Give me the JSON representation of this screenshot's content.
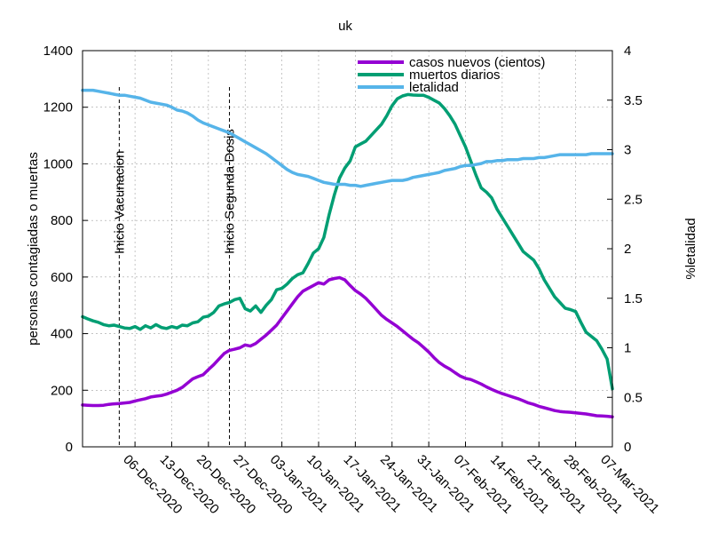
{
  "chart_data": {
    "type": "line",
    "title": "uk",
    "ylabel": "personas contagiadas o muertas",
    "y2label": "%letalidad",
    "ylim": [
      0,
      1400
    ],
    "y2lim": [
      0,
      4
    ],
    "yticks": [
      0,
      200,
      400,
      600,
      800,
      1000,
      1200,
      1400
    ],
    "y2ticks": [
      "0",
      "0.5",
      "1",
      "1.5",
      "2",
      "2.5",
      "3",
      "3.5",
      "4"
    ],
    "x_start": "2020-11-26",
    "x_end": "2021-03-07",
    "xticks": [
      "06-Dec-2020",
      "13-Dec-2020",
      "20-Dec-2020",
      "27-Dec-2020",
      "03-Jan-2021",
      "10-Jan-2021",
      "17-Jan-2021",
      "24-Jan-2021",
      "31-Jan-2021",
      "07-Feb-2021",
      "14-Feb-2021",
      "21-Feb-2021",
      "28-Feb-2021",
      "07-Mar-2021"
    ],
    "xtick_dates": [
      "2020-12-06",
      "2020-12-13",
      "2020-12-20",
      "2020-12-27",
      "2021-01-03",
      "2021-01-10",
      "2021-01-17",
      "2021-01-24",
      "2021-01-31",
      "2021-02-07",
      "2021-02-14",
      "2021-02-21",
      "2021-02-28",
      "2021-03-07"
    ],
    "grid": true,
    "legend_position": "top-right",
    "annotations": [
      {
        "label": "Inicio Vacunacion",
        "date": "2020-12-03"
      },
      {
        "label": "Inicio Segunda Dosis",
        "date": "2020-12-24"
      }
    ],
    "x": [
      "2020-11-26",
      "2020-11-27",
      "2020-11-28",
      "2020-11-29",
      "2020-11-30",
      "2020-12-01",
      "2020-12-02",
      "2020-12-03",
      "2020-12-04",
      "2020-12-05",
      "2020-12-06",
      "2020-12-07",
      "2020-12-08",
      "2020-12-09",
      "2020-12-10",
      "2020-12-11",
      "2020-12-12",
      "2020-12-13",
      "2020-12-14",
      "2020-12-15",
      "2020-12-16",
      "2020-12-17",
      "2020-12-18",
      "2020-12-19",
      "2020-12-20",
      "2020-12-21",
      "2020-12-22",
      "2020-12-23",
      "2020-12-24",
      "2020-12-25",
      "2020-12-26",
      "2020-12-27",
      "2020-12-28",
      "2020-12-29",
      "2020-12-30",
      "2020-12-31",
      "2021-01-01",
      "2021-01-02",
      "2021-01-03",
      "2021-01-04",
      "2021-01-05",
      "2021-01-06",
      "2021-01-07",
      "2021-01-08",
      "2021-01-09",
      "2021-01-10",
      "2021-01-11",
      "2021-01-12",
      "2021-01-13",
      "2021-01-14",
      "2021-01-15",
      "2021-01-16",
      "2021-01-17",
      "2021-01-18",
      "2021-01-19",
      "2021-01-20",
      "2021-01-21",
      "2021-01-22",
      "2021-01-23",
      "2021-01-24",
      "2021-01-25",
      "2021-01-26",
      "2021-01-27",
      "2021-01-28",
      "2021-01-29",
      "2021-01-30",
      "2021-01-31",
      "2021-02-01",
      "2021-02-02",
      "2021-02-03",
      "2021-02-04",
      "2021-02-05",
      "2021-02-06",
      "2021-02-07",
      "2021-02-08",
      "2021-02-09",
      "2021-02-10",
      "2021-02-11",
      "2021-02-12",
      "2021-02-13",
      "2021-02-14",
      "2021-02-15",
      "2021-02-16",
      "2021-02-17",
      "2021-02-18",
      "2021-02-19",
      "2021-02-20",
      "2021-02-21",
      "2021-02-22",
      "2021-02-23",
      "2021-02-24",
      "2021-02-25",
      "2021-02-26",
      "2021-02-27",
      "2021-02-28",
      "2021-03-01",
      "2021-03-02",
      "2021-03-03",
      "2021-03-04",
      "2021-03-05",
      "2021-03-06",
      "2021-03-07"
    ],
    "series": [
      {
        "name": "casos nuevos (cientos)",
        "axis": "left",
        "color": "#9400d3",
        "values": [
          148,
          147,
          146,
          146,
          147,
          150,
          152,
          153,
          155,
          157,
          162,
          166,
          170,
          176,
          179,
          181,
          186,
          193,
          200,
          210,
          225,
          240,
          248,
          255,
          273,
          290,
          310,
          330,
          341,
          345,
          350,
          360,
          356,
          365,
          380,
          395,
          412,
          430,
          455,
          480,
          505,
          530,
          550,
          560,
          570,
          580,
          575,
          590,
          595,
          598,
          590,
          570,
          552,
          540,
          525,
          505,
          485,
          465,
          450,
          438,
          425,
          410,
          395,
          380,
          368,
          352,
          335,
          315,
          298,
          285,
          275,
          262,
          250,
          242,
          238,
          230,
          222,
          212,
          203,
          195,
          188,
          182,
          176,
          170,
          163,
          155,
          150,
          143,
          138,
          133,
          128,
          125,
          123,
          122,
          120,
          118,
          116,
          113,
          110,
          109,
          108,
          106
        ]
      },
      {
        "name": "muertos diarios",
        "axis": "left",
        "color": "#009e73",
        "values": [
          460,
          452,
          445,
          440,
          432,
          428,
          430,
          425,
          420,
          418,
          425,
          415,
          428,
          420,
          432,
          422,
          418,
          425,
          420,
          430,
          428,
          438,
          442,
          458,
          462,
          475,
          498,
          505,
          510,
          520,
          525,
          488,
          480,
          498,
          475,
          500,
          520,
          555,
          560,
          575,
          595,
          608,
          615,
          648,
          685,
          700,
          740,
          820,
          890,
          950,
          985,
          1010,
          1060,
          1070,
          1080,
          1100,
          1120,
          1140,
          1170,
          1205,
          1230,
          1240,
          1245,
          1243,
          1242,
          1242,
          1235,
          1225,
          1215,
          1195,
          1170,
          1140,
          1100,
          1060,
          1010,
          960,
          915,
          900,
          880,
          840,
          810,
          780,
          750,
          720,
          690,
          675,
          660,
          630,
          590,
          560,
          530,
          510,
          490,
          485,
          478,
          440,
          405,
          390,
          375,
          345,
          310,
          205
        ]
      },
      {
        "name": "letalidad",
        "axis": "right",
        "color": "#56b4e9",
        "values": [
          3.6,
          3.6,
          3.6,
          3.59,
          3.58,
          3.57,
          3.56,
          3.55,
          3.55,
          3.54,
          3.53,
          3.52,
          3.5,
          3.48,
          3.47,
          3.46,
          3.45,
          3.43,
          3.4,
          3.39,
          3.37,
          3.34,
          3.3,
          3.27,
          3.25,
          3.23,
          3.21,
          3.19,
          3.17,
          3.14,
          3.11,
          3.08,
          3.05,
          3.02,
          2.99,
          2.96,
          2.92,
          2.88,
          2.84,
          2.8,
          2.77,
          2.75,
          2.74,
          2.73,
          2.71,
          2.69,
          2.67,
          2.66,
          2.65,
          2.65,
          2.65,
          2.64,
          2.64,
          2.63,
          2.64,
          2.65,
          2.66,
          2.67,
          2.68,
          2.69,
          2.69,
          2.69,
          2.7,
          2.72,
          2.73,
          2.74,
          2.75,
          2.76,
          2.77,
          2.79,
          2.8,
          2.81,
          2.83,
          2.84,
          2.84,
          2.85,
          2.86,
          2.88,
          2.88,
          2.89,
          2.89,
          2.9,
          2.9,
          2.9,
          2.91,
          2.91,
          2.91,
          2.92,
          2.92,
          2.93,
          2.94,
          2.95,
          2.95,
          2.95,
          2.95,
          2.95,
          2.95,
          2.96,
          2.96,
          2.96,
          2.96,
          2.96
        ]
      }
    ]
  }
}
